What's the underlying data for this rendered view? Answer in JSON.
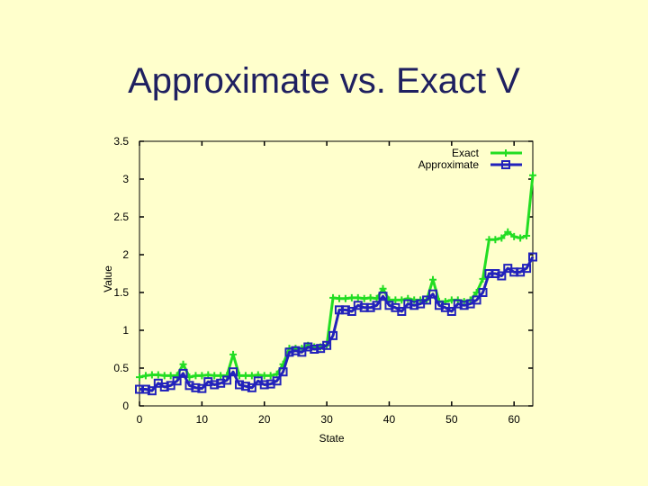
{
  "slide": {
    "title": "Approximate vs. Exact V"
  },
  "chart_data": {
    "type": "line",
    "xlabel": "State",
    "ylabel": "Value",
    "xlim": [
      0,
      63
    ],
    "ylim": [
      0,
      3.5
    ],
    "xticks": [
      0,
      10,
      20,
      30,
      40,
      50,
      60
    ],
    "yticks": [
      0,
      0.5,
      1,
      1.5,
      2,
      2.5,
      3,
      3.5
    ],
    "ytick_labels": [
      "0",
      "0.5",
      "1",
      "1.5",
      "2",
      "2.5",
      "3",
      "3.5"
    ],
    "legend_position": "top-right",
    "grid": false,
    "x": [
      0,
      1,
      2,
      3,
      4,
      5,
      6,
      7,
      8,
      9,
      10,
      11,
      12,
      13,
      14,
      15,
      16,
      17,
      18,
      19,
      20,
      21,
      22,
      23,
      24,
      25,
      26,
      27,
      28,
      29,
      30,
      31,
      32,
      33,
      34,
      35,
      36,
      37,
      38,
      39,
      40,
      41,
      42,
      43,
      44,
      45,
      46,
      47,
      48,
      49,
      50,
      51,
      52,
      53,
      54,
      55,
      56,
      57,
      58,
      59,
      60,
      61,
      62,
      63
    ],
    "series": [
      {
        "name": "Exact",
        "color": "#22dd22",
        "marker": "plus",
        "values": [
          0.38,
          0.4,
          0.41,
          0.41,
          0.4,
          0.4,
          0.4,
          0.55,
          0.38,
          0.4,
          0.4,
          0.41,
          0.4,
          0.4,
          0.4,
          0.68,
          0.4,
          0.4,
          0.4,
          0.41,
          0.4,
          0.4,
          0.42,
          0.55,
          0.76,
          0.76,
          0.76,
          0.8,
          0.78,
          0.78,
          0.8,
          1.43,
          1.42,
          1.42,
          1.43,
          1.43,
          1.42,
          1.43,
          1.42,
          1.55,
          1.4,
          1.4,
          1.4,
          1.42,
          1.4,
          1.4,
          1.4,
          1.67,
          1.38,
          1.38,
          1.4,
          1.4,
          1.38,
          1.4,
          1.5,
          1.68,
          2.2,
          2.2,
          2.22,
          2.3,
          2.24,
          2.22,
          2.25,
          3.05
        ]
      },
      {
        "name": "Approximate",
        "color": "#2222bb",
        "marker": "square",
        "values": [
          0.22,
          0.22,
          0.2,
          0.3,
          0.25,
          0.27,
          0.33,
          0.43,
          0.27,
          0.24,
          0.23,
          0.32,
          0.28,
          0.3,
          0.34,
          0.45,
          0.28,
          0.26,
          0.24,
          0.33,
          0.28,
          0.29,
          0.33,
          0.45,
          0.71,
          0.73,
          0.71,
          0.78,
          0.75,
          0.76,
          0.8,
          0.93,
          1.27,
          1.27,
          1.25,
          1.33,
          1.3,
          1.3,
          1.33,
          1.45,
          1.33,
          1.3,
          1.25,
          1.35,
          1.33,
          1.35,
          1.4,
          1.48,
          1.33,
          1.3,
          1.25,
          1.35,
          1.33,
          1.35,
          1.4,
          1.5,
          1.75,
          1.75,
          1.72,
          1.82,
          1.77,
          1.77,
          1.82,
          1.97
        ]
      }
    ]
  }
}
